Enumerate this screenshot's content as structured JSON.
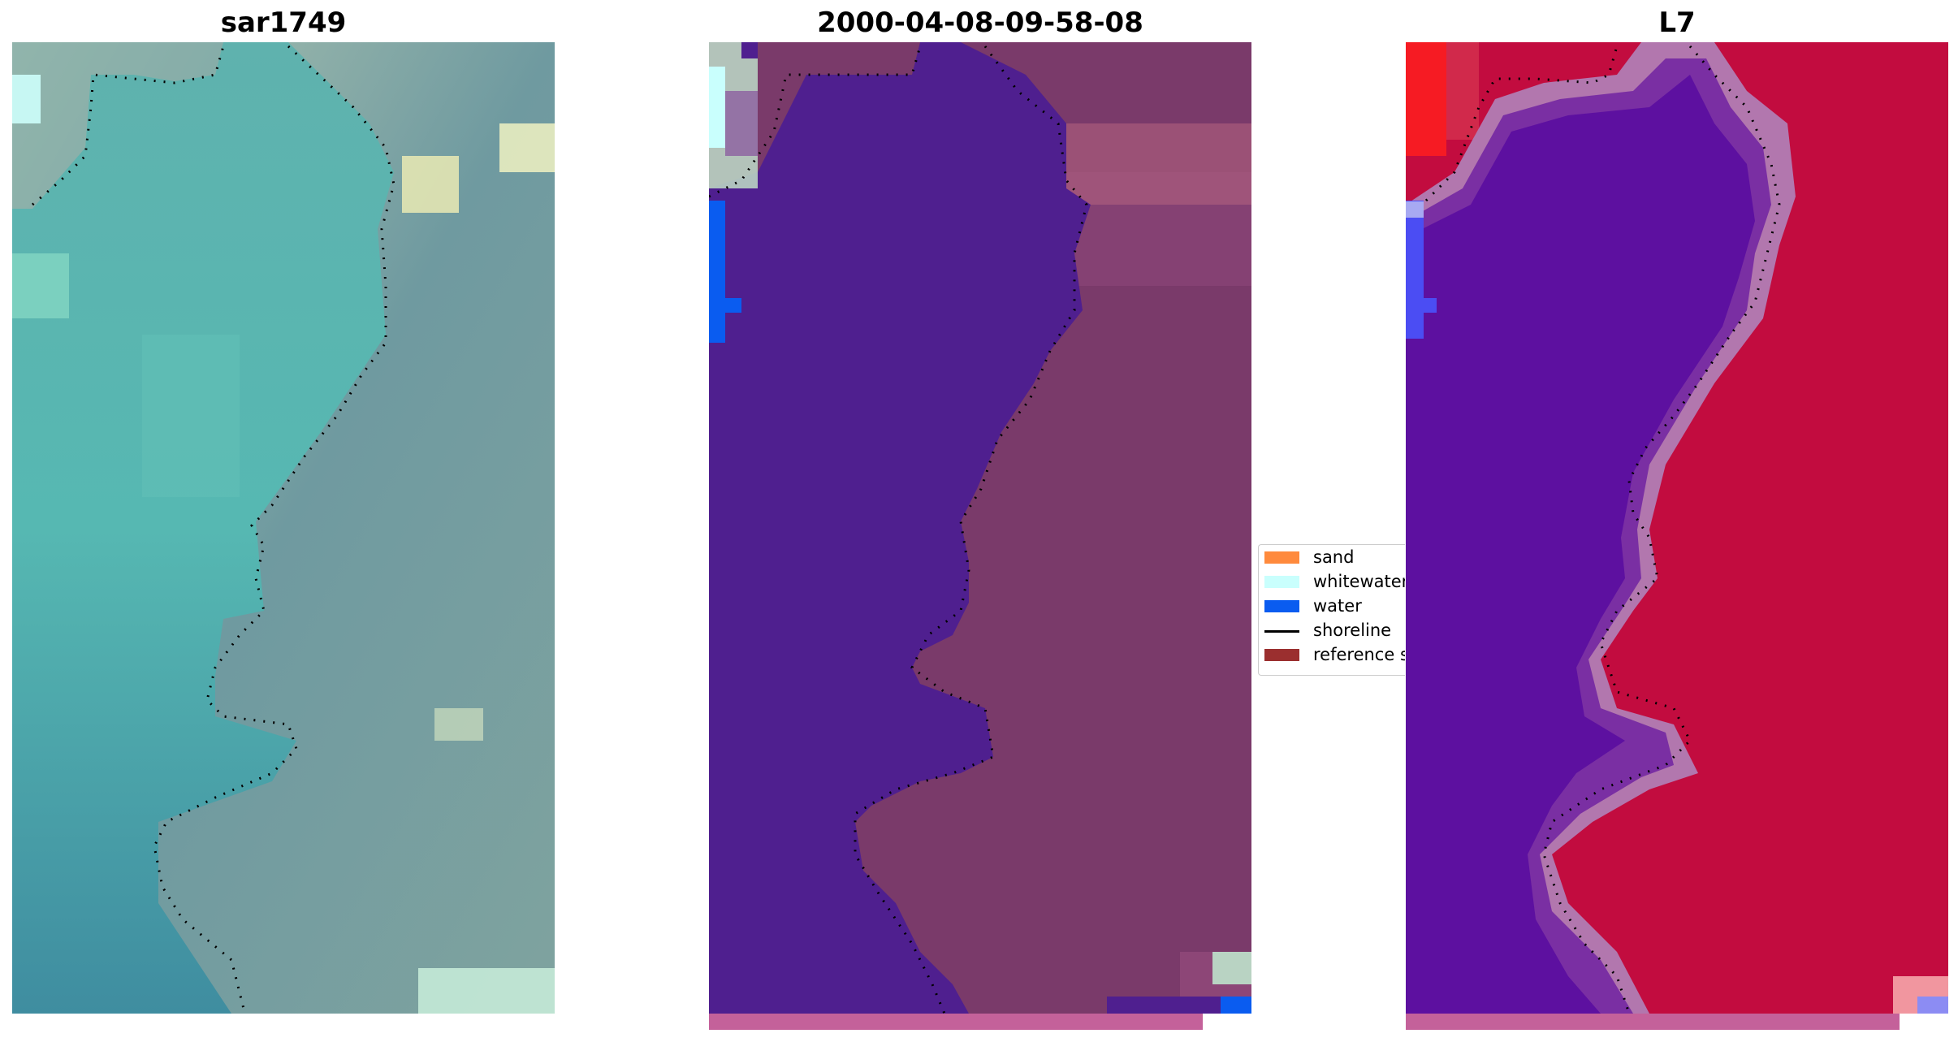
{
  "titles": {
    "left": "sar1749",
    "middle": "2000-04-08-09-58-08",
    "right": "L7"
  },
  "legend": {
    "items": [
      {
        "label": "sand",
        "kind": "patch",
        "color": "#ff8a3d"
      },
      {
        "label": "whitewater",
        "kind": "patch",
        "color": "#c9fffd"
      },
      {
        "label": "water",
        "kind": "patch",
        "color": "#0a5cf0"
      },
      {
        "label": "shoreline",
        "kind": "line",
        "color": "#000000"
      },
      {
        "label": "reference s",
        "kind": "patch",
        "color": "#9b2f2f"
      }
    ]
  },
  "colors": {
    "rgb_water": "#4fa8aa",
    "rgb_land": "#6c999c",
    "rgb_highlight": "#d9e6b8",
    "class_water": "#4f1f8f",
    "class_land": "#7a3a6a",
    "class_water_edge": "#0a5cf0",
    "class_whitewater": "#b9f2e9",
    "mndwi_water": "#5d10a0",
    "mndwi_land": "#c20c3f",
    "mndwi_transition": "#b277ae",
    "strip": "#c4619a"
  }
}
